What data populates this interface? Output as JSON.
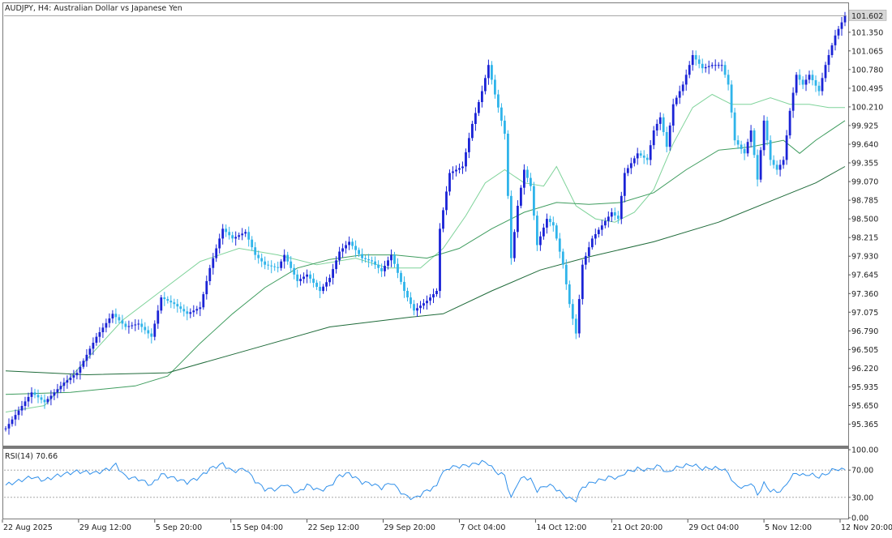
{
  "window": {
    "title": "AUDJPY, H4:  Australian Dollar vs Japanese Yen"
  },
  "colors": {
    "background": "#ffffff",
    "frame": "#7a7a7a",
    "bull_candle": "#1a23d6",
    "bear_candle": "#2fb4ea",
    "ma_fast": "#7fd39a",
    "ma_mid": "#3e9c5e",
    "ma_slow": "#1f6b3a",
    "rsi_line": "#2f8fea",
    "rsi_levels": "#9a9a9a",
    "price_tag_bg": "#d7d7d7"
  },
  "chart_data": [
    {
      "type": "candlestick",
      "title": "AUDJPY, H4:  Australian Dollar vs Japanese Yen",
      "current_price": 101.602,
      "current_price_label": "101.602",
      "y_ticks": [
        "101.350",
        "101.065",
        "100.780",
        "100.495",
        "100.210",
        "99.925",
        "99.640",
        "99.355",
        "99.070",
        "98.785",
        "98.500",
        "98.215",
        "97.930",
        "97.645",
        "97.360",
        "97.075",
        "96.790",
        "96.505",
        "96.220",
        "95.935",
        "95.650",
        "95.365"
      ],
      "ylim": [
        95.05,
        101.78
      ],
      "x_labels": [
        "22 Aug 2025",
        "29 Aug 12:00",
        "5 Sep 20:00",
        "15 Sep 04:00",
        "22 Sep 12:00",
        "29 Sep 20:00",
        "7 Oct 04:00",
        "14 Oct 12:00",
        "21 Oct 20:00",
        "29 Oct 04:00",
        "5 Nov 12:00",
        "12 Nov 20:00"
      ],
      "path_keypoints": [
        [
          0,
          95.3
        ],
        [
          8,
          95.85
        ],
        [
          12,
          95.7
        ],
        [
          18,
          96.0
        ],
        [
          22,
          96.15
        ],
        [
          28,
          96.7
        ],
        [
          33,
          97.05
        ],
        [
          37,
          96.85
        ],
        [
          41,
          96.9
        ],
        [
          45,
          96.7
        ],
        [
          48,
          97.3
        ],
        [
          52,
          97.2
        ],
        [
          56,
          97.05
        ],
        [
          60,
          97.15
        ],
        [
          63,
          97.75
        ],
        [
          67,
          98.35
        ],
        [
          70,
          98.2
        ],
        [
          74,
          98.3
        ],
        [
          77,
          97.95
        ],
        [
          80,
          97.8
        ],
        [
          84,
          97.75
        ],
        [
          86,
          97.95
        ],
        [
          90,
          97.55
        ],
        [
          93,
          97.65
        ],
        [
          97,
          97.4
        ],
        [
          100,
          97.6
        ],
        [
          103,
          98.0
        ],
        [
          106,
          98.15
        ],
        [
          110,
          97.9
        ],
        [
          113,
          97.85
        ],
        [
          116,
          97.7
        ],
        [
          119,
          97.95
        ],
        [
          123,
          97.4
        ],
        [
          126,
          97.1
        ],
        [
          130,
          97.25
        ],
        [
          133,
          97.4
        ],
        [
          134,
          98.35
        ],
        [
          137,
          99.2
        ],
        [
          141,
          99.3
        ],
        [
          144,
          99.95
        ],
        [
          147,
          100.45
        ],
        [
          149,
          100.85
        ],
        [
          151,
          100.4
        ],
        [
          154,
          99.8
        ],
        [
          156,
          97.9
        ],
        [
          158,
          98.7
        ],
        [
          160,
          99.25
        ],
        [
          162,
          99.0
        ],
        [
          164,
          98.1
        ],
        [
          167,
          98.5
        ],
        [
          169,
          98.4
        ],
        [
          172,
          97.8
        ],
        [
          174,
          97.2
        ],
        [
          176,
          96.75
        ],
        [
          178,
          97.8
        ],
        [
          181,
          98.2
        ],
        [
          184,
          98.4
        ],
        [
          187,
          98.6
        ],
        [
          189,
          98.5
        ],
        [
          191,
          99.2
        ],
        [
          195,
          99.5
        ],
        [
          198,
          99.4
        ],
        [
          200,
          99.85
        ],
        [
          202,
          100.05
        ],
        [
          204,
          99.6
        ],
        [
          206,
          100.25
        ],
        [
          209,
          100.55
        ],
        [
          212,
          101.0
        ],
        [
          215,
          100.8
        ],
        [
          218,
          100.85
        ],
        [
          221,
          100.85
        ],
        [
          223,
          100.55
        ],
        [
          225,
          99.7
        ],
        [
          228,
          99.5
        ],
        [
          230,
          99.85
        ],
        [
          232,
          99.1
        ],
        [
          234,
          100.0
        ],
        [
          236,
          99.4
        ],
        [
          238,
          99.25
        ],
        [
          240,
          99.4
        ],
        [
          242,
          100.15
        ],
        [
          244,
          100.7
        ],
        [
          246,
          100.55
        ],
        [
          248,
          100.7
        ],
        [
          251,
          100.45
        ],
        [
          253,
          100.85
        ],
        [
          256,
          101.3
        ],
        [
          258,
          101.5
        ],
        [
          259,
          101.602
        ]
      ],
      "moving_averages": [
        {
          "points": [
            [
              0,
              95.55
            ],
            [
              12,
              95.65
            ],
            [
              24,
              96.3
            ],
            [
              36,
              96.95
            ],
            [
              48,
              97.4
            ],
            [
              60,
              97.85
            ],
            [
              72,
              98.05
            ],
            [
              84,
              97.95
            ],
            [
              96,
              97.8
            ],
            [
              108,
              97.9
            ],
            [
              118,
              97.75
            ],
            [
              128,
              97.75
            ],
            [
              135,
              98.05
            ],
            [
              142,
              98.55
            ],
            [
              148,
              99.05
            ],
            [
              154,
              99.25
            ],
            [
              160,
              99.05
            ],
            [
              166,
              99.0
            ],
            [
              170,
              99.3
            ],
            [
              176,
              98.7
            ],
            [
              182,
              98.5
            ],
            [
              188,
              98.45
            ],
            [
              194,
              98.6
            ],
            [
              200,
              98.95
            ],
            [
              206,
              99.65
            ],
            [
              212,
              100.2
            ],
            [
              218,
              100.4
            ],
            [
              224,
              100.25
            ],
            [
              230,
              100.25
            ],
            [
              236,
              100.35
            ],
            [
              242,
              100.25
            ],
            [
              248,
              100.25
            ],
            [
              254,
              100.2
            ],
            [
              259,
              100.2
            ]
          ]
        },
        {
          "points": [
            [
              0,
              95.82
            ],
            [
              20,
              95.85
            ],
            [
              40,
              95.95
            ],
            [
              50,
              96.1
            ],
            [
              60,
              96.6
            ],
            [
              70,
              97.05
            ],
            [
              80,
              97.45
            ],
            [
              90,
              97.75
            ],
            [
              100,
              97.88
            ],
            [
              110,
              97.95
            ],
            [
              120,
              97.95
            ],
            [
              130,
              97.9
            ],
            [
              140,
              98.05
            ],
            [
              150,
              98.35
            ],
            [
              160,
              98.6
            ],
            [
              170,
              98.75
            ],
            [
              180,
              98.72
            ],
            [
              190,
              98.75
            ],
            [
              200,
              98.9
            ],
            [
              210,
              99.25
            ],
            [
              220,
              99.55
            ],
            [
              230,
              99.6
            ],
            [
              240,
              99.7
            ],
            [
              245,
              99.5
            ],
            [
              250,
              99.7
            ],
            [
              259,
              100.0
            ]
          ]
        },
        {
          "points": [
            [
              0,
              96.18
            ],
            [
              25,
              96.12
            ],
            [
              50,
              96.15
            ],
            [
              75,
              96.5
            ],
            [
              100,
              96.85
            ],
            [
              125,
              97.0
            ],
            [
              135,
              97.05
            ],
            [
              150,
              97.4
            ],
            [
              165,
              97.72
            ],
            [
              180,
              97.92
            ],
            [
              200,
              98.15
            ],
            [
              220,
              98.45
            ],
            [
              240,
              98.85
            ],
            [
              250,
              99.05
            ],
            [
              259,
              99.3
            ]
          ]
        }
      ]
    },
    {
      "type": "line",
      "title": "RSI(14) 70.66",
      "y_ticks": [
        "100.00",
        "70.00",
        "30.00",
        "0.00"
      ],
      "levels": [
        70,
        30
      ],
      "ylim": [
        0,
        100
      ],
      "current_value": 70.66,
      "path_keypoints": [
        [
          0,
          48
        ],
        [
          8,
          60
        ],
        [
          12,
          55
        ],
        [
          16,
          62
        ],
        [
          22,
          68
        ],
        [
          28,
          66
        ],
        [
          32,
          72
        ],
        [
          34,
          78
        ],
        [
          37,
          60
        ],
        [
          41,
          57
        ],
        [
          45,
          48
        ],
        [
          48,
          64
        ],
        [
          52,
          58
        ],
        [
          56,
          52
        ],
        [
          60,
          60
        ],
        [
          63,
          72
        ],
        [
          67,
          79
        ],
        [
          70,
          68
        ],
        [
          74,
          72
        ],
        [
          77,
          54
        ],
        [
          80,
          42
        ],
        [
          84,
          42
        ],
        [
          86,
          50
        ],
        [
          90,
          36
        ],
        [
          93,
          48
        ],
        [
          97,
          40
        ],
        [
          100,
          46
        ],
        [
          103,
          62
        ],
        [
          106,
          65
        ],
        [
          110,
          52
        ],
        [
          113,
          50
        ],
        [
          116,
          44
        ],
        [
          119,
          52
        ],
        [
          123,
          33
        ],
        [
          126,
          28
        ],
        [
          130,
          40
        ],
        [
          133,
          46
        ],
        [
          134,
          62
        ],
        [
          137,
          74
        ],
        [
          141,
          76
        ],
        [
          144,
          78
        ],
        [
          147,
          82
        ],
        [
          149,
          80
        ],
        [
          151,
          68
        ],
        [
          154,
          62
        ],
        [
          156,
          28
        ],
        [
          158,
          52
        ],
        [
          160,
          60
        ],
        [
          162,
          56
        ],
        [
          164,
          40
        ],
        [
          167,
          48
        ],
        [
          169,
          46
        ],
        [
          172,
          34
        ],
        [
          174,
          28
        ],
        [
          176,
          26
        ],
        [
          178,
          45
        ],
        [
          181,
          52
        ],
        [
          184,
          56
        ],
        [
          187,
          60
        ],
        [
          189,
          58
        ],
        [
          191,
          66
        ],
        [
          195,
          72
        ],
        [
          198,
          70
        ],
        [
          200,
          74
        ],
        [
          202,
          76
        ],
        [
          204,
          65
        ],
        [
          206,
          72
        ],
        [
          209,
          76
        ],
        [
          212,
          78
        ],
        [
          215,
          72
        ],
        [
          218,
          73
        ],
        [
          221,
          72
        ],
        [
          223,
          66
        ],
        [
          225,
          48
        ],
        [
          228,
          44
        ],
        [
          230,
          52
        ],
        [
          232,
          34
        ],
        [
          234,
          50
        ],
        [
          236,
          40
        ],
        [
          238,
          38
        ],
        [
          240,
          42
        ],
        [
          242,
          58
        ],
        [
          244,
          66
        ],
        [
          246,
          62
        ],
        [
          248,
          64
        ],
        [
          251,
          60
        ],
        [
          253,
          64
        ],
        [
          256,
          72
        ],
        [
          258,
          70
        ],
        [
          259,
          70.66
        ]
      ]
    }
  ]
}
